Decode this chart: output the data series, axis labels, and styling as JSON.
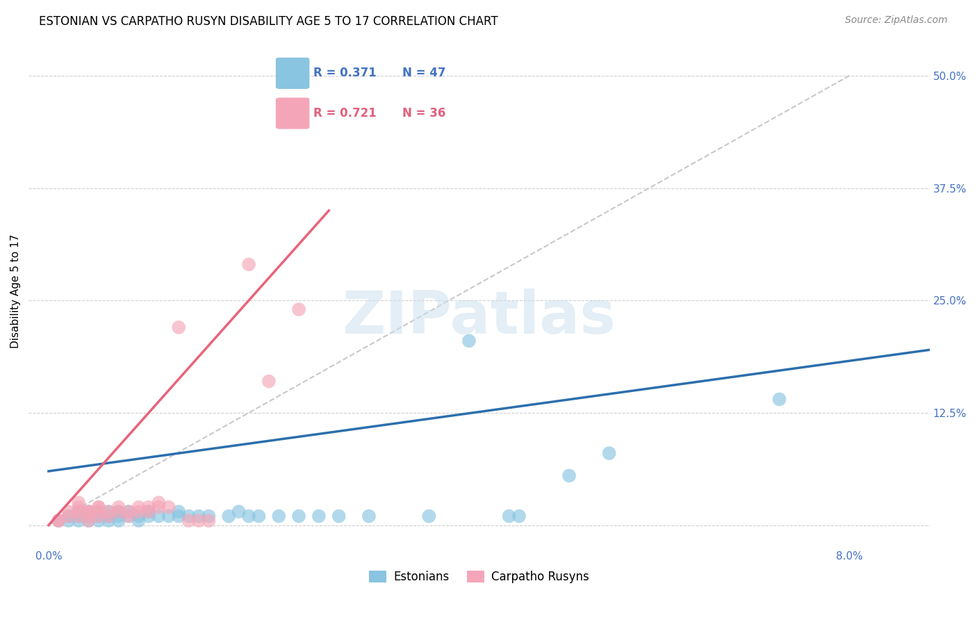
{
  "title": "ESTONIAN VS CARPATHO RUSYN DISABILITY AGE 5 TO 17 CORRELATION CHART",
  "source_text": "Source: ZipAtlas.com",
  "ylabel_label": "Disability Age 5 to 17",
  "x_ticks": [
    0.0,
    0.02,
    0.04,
    0.06,
    0.08
  ],
  "x_tick_labels": [
    "0.0%",
    "",
    "",
    "",
    "8.0%"
  ],
  "y_ticks": [
    0.0,
    0.125,
    0.25,
    0.375,
    0.5
  ],
  "y_tick_labels": [
    "",
    "12.5%",
    "25.0%",
    "37.5%",
    "50.0%"
  ],
  "xlim": [
    -0.002,
    0.088
  ],
  "ylim": [
    -0.025,
    0.545
  ],
  "legend_r_blue": "R = 0.371",
  "legend_n_blue": "N = 47",
  "legend_r_pink": "R = 0.721",
  "legend_n_pink": "N = 36",
  "legend_label_blue": "Estonians",
  "legend_label_pink": "Carpatho Rusyns",
  "blue_color": "#89c4e1",
  "pink_color": "#f4a6b8",
  "blue_line_color": "#2c6fad",
  "pink_line_color": "#e8637a",
  "diagonal_line_color": "#c8c8c8",
  "blue_scatter": [
    [
      0.001,
      0.005
    ],
    [
      0.002,
      0.005
    ],
    [
      0.002,
      0.01
    ],
    [
      0.003,
      0.005
    ],
    [
      0.003,
      0.01
    ],
    [
      0.003,
      0.015
    ],
    [
      0.004,
      0.005
    ],
    [
      0.004,
      0.01
    ],
    [
      0.004,
      0.015
    ],
    [
      0.005,
      0.005
    ],
    [
      0.005,
      0.01
    ],
    [
      0.005,
      0.015
    ],
    [
      0.006,
      0.005
    ],
    [
      0.006,
      0.01
    ],
    [
      0.006,
      0.015
    ],
    [
      0.007,
      0.005
    ],
    [
      0.007,
      0.01
    ],
    [
      0.007,
      0.015
    ],
    [
      0.008,
      0.01
    ],
    [
      0.008,
      0.015
    ],
    [
      0.009,
      0.005
    ],
    [
      0.009,
      0.01
    ],
    [
      0.01,
      0.01
    ],
    [
      0.01,
      0.015
    ],
    [
      0.011,
      0.01
    ],
    [
      0.012,
      0.01
    ],
    [
      0.013,
      0.01
    ],
    [
      0.013,
      0.015
    ],
    [
      0.014,
      0.01
    ],
    [
      0.015,
      0.01
    ],
    [
      0.016,
      0.01
    ],
    [
      0.018,
      0.01
    ],
    [
      0.019,
      0.015
    ],
    [
      0.02,
      0.01
    ],
    [
      0.021,
      0.01
    ],
    [
      0.023,
      0.01
    ],
    [
      0.025,
      0.01
    ],
    [
      0.027,
      0.01
    ],
    [
      0.029,
      0.01
    ],
    [
      0.032,
      0.01
    ],
    [
      0.038,
      0.01
    ],
    [
      0.042,
      0.205
    ],
    [
      0.046,
      0.01
    ],
    [
      0.047,
      0.01
    ],
    [
      0.052,
      0.055
    ],
    [
      0.056,
      0.08
    ],
    [
      0.073,
      0.14
    ]
  ],
  "pink_scatter": [
    [
      0.001,
      0.005
    ],
    [
      0.001,
      0.005
    ],
    [
      0.002,
      0.01
    ],
    [
      0.002,
      0.015
    ],
    [
      0.003,
      0.01
    ],
    [
      0.003,
      0.015
    ],
    [
      0.003,
      0.02
    ],
    [
      0.003,
      0.025
    ],
    [
      0.004,
      0.005
    ],
    [
      0.004,
      0.01
    ],
    [
      0.004,
      0.015
    ],
    [
      0.004,
      0.015
    ],
    [
      0.005,
      0.01
    ],
    [
      0.005,
      0.015
    ],
    [
      0.005,
      0.02
    ],
    [
      0.005,
      0.02
    ],
    [
      0.006,
      0.01
    ],
    [
      0.006,
      0.015
    ],
    [
      0.007,
      0.015
    ],
    [
      0.007,
      0.02
    ],
    [
      0.008,
      0.01
    ],
    [
      0.008,
      0.015
    ],
    [
      0.009,
      0.015
    ],
    [
      0.009,
      0.02
    ],
    [
      0.01,
      0.015
    ],
    [
      0.01,
      0.02
    ],
    [
      0.011,
      0.025
    ],
    [
      0.011,
      0.02
    ],
    [
      0.012,
      0.02
    ],
    [
      0.013,
      0.22
    ],
    [
      0.014,
      0.005
    ],
    [
      0.015,
      0.005
    ],
    [
      0.016,
      0.005
    ],
    [
      0.02,
      0.29
    ],
    [
      0.022,
      0.16
    ],
    [
      0.025,
      0.24
    ]
  ],
  "pink_line_x": [
    0.0,
    0.028
  ],
  "pink_line_y": [
    0.0,
    0.35
  ],
  "blue_line_x": [
    0.0,
    0.088
  ],
  "blue_line_y": [
    0.06,
    0.195
  ],
  "watermark": "ZIPatlas",
  "title_fontsize": 12,
  "axis_label_fontsize": 11,
  "tick_fontsize": 11,
  "source_fontsize": 10,
  "legend_fontsize": 12
}
